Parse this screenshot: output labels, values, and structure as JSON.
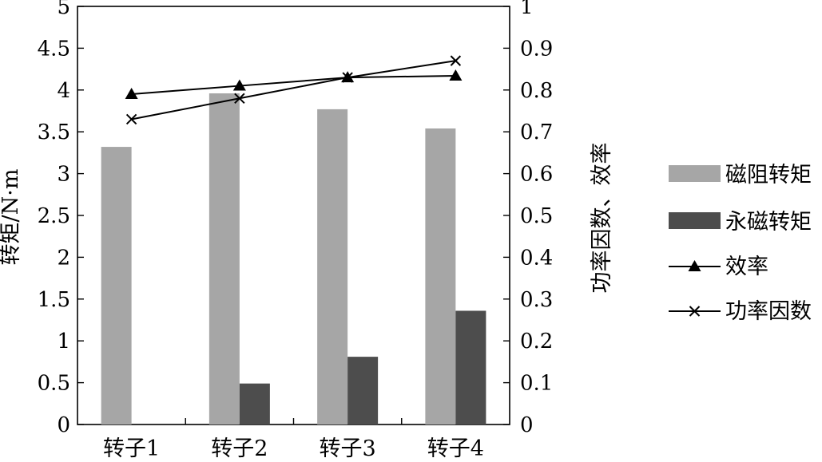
{
  "chart_data": {
    "type": "bar",
    "categories": [
      "转子1",
      "转子2",
      "转子3",
      "转子4"
    ],
    "bar_series": [
      {
        "name": "磁阻转矩",
        "values": [
          3.32,
          3.96,
          3.77,
          3.54
        ],
        "color": "#a6a6a6"
      },
      {
        "name": "永磁转矩",
        "values": [
          0,
          0.49,
          0.81,
          1.36
        ],
        "color": "#4d4d4d"
      }
    ],
    "line_series": [
      {
        "name": "效率",
        "marker": "triangle",
        "values": [
          0.79,
          0.81,
          0.83,
          0.834
        ]
      },
      {
        "name": "功率因数",
        "marker": "x",
        "values": [
          0.73,
          0.78,
          0.83,
          0.87
        ]
      }
    ],
    "y_left": {
      "label": "转矩/N·m",
      "range": [
        0,
        5
      ],
      "ticks": [
        "0",
        "0.5",
        "1",
        "1.5",
        "2",
        "2.5",
        "3",
        "3.5",
        "4",
        "4.5",
        "5"
      ]
    },
    "y_right": {
      "label": "功率因数、效率",
      "range": [
        0,
        1
      ],
      "ticks": [
        "0",
        "0.1",
        "0.2",
        "0.3",
        "0.4",
        "0.5",
        "0.6",
        "0.7",
        "0.8",
        "0.9",
        "1"
      ]
    },
    "grid": false,
    "legend_position": "right"
  }
}
